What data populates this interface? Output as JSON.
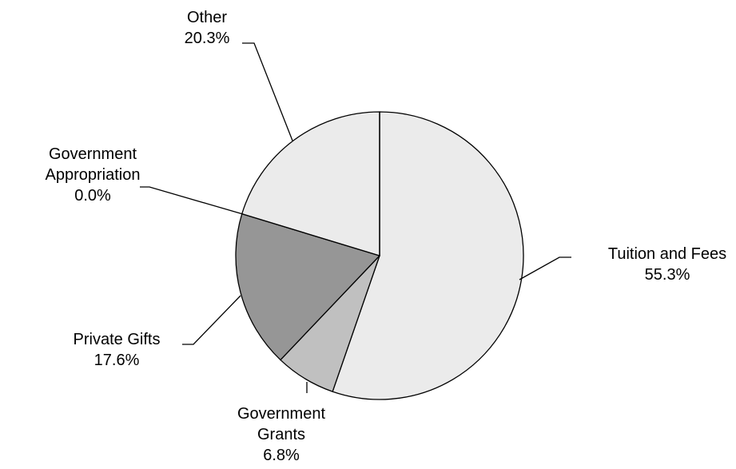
{
  "chart_data": {
    "type": "pie",
    "title": "",
    "start": "12 o'clock, clockwise",
    "slices": [
      {
        "label": "Tuition and Fees",
        "label_lines": [
          "Tuition and Fees"
        ],
        "value": 55.3,
        "value_text": "55.3%",
        "color": "#ebebeb"
      },
      {
        "label": "Government Grants",
        "label_lines": [
          "Government",
          "Grants"
        ],
        "value": 6.8,
        "value_text": "6.8%",
        "color": "#c0c0c0"
      },
      {
        "label": "Private Gifts",
        "label_lines": [
          "Private Gifts"
        ],
        "value": 17.6,
        "value_text": "17.6%",
        "color": "#969696"
      },
      {
        "label": "Government Appropriation",
        "label_lines": [
          "Government",
          "Appropriation"
        ],
        "value": 0.0,
        "value_text": "0.0%",
        "color": "#ffffff"
      },
      {
        "label": "Other",
        "label_lines": [
          "Other"
        ],
        "value": 20.3,
        "value_text": "20.3%",
        "color": "#ebebeb"
      }
    ]
  }
}
